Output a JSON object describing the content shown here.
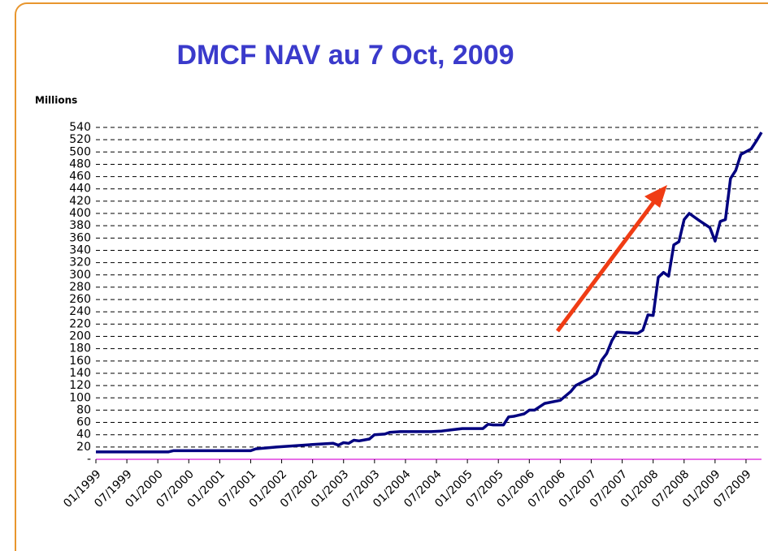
{
  "chart_data": {
    "type": "line",
    "title": "DMCF NAV au 7 Oct, 2009",
    "y_label": "Millions",
    "x": [
      "01/1999",
      "03/2000",
      "04/2000",
      "07/2001",
      "08/2001",
      "12/2001",
      "07/2002",
      "11/2002",
      "12/2002",
      "01/2003",
      "02/2003",
      "03/2003",
      "04/2003",
      "06/2003",
      "07/2003",
      "09/2003",
      "10/2003",
      "12/2003",
      "06/2004",
      "08/2004",
      "10/2004",
      "12/2004",
      "04/2005",
      "05/2005",
      "06/2005",
      "08/2005",
      "09/2005",
      "10/2005",
      "12/2005",
      "01/2006",
      "02/2006",
      "04/2006",
      "07/2006",
      "09/2006",
      "10/2006",
      "01/2007",
      "02/2007",
      "03/2007",
      "04/2007",
      "05/2007",
      "06/2007",
      "08/2007",
      "10/2007",
      "11/2007",
      "12/2007",
      "01/2008",
      "02/2008",
      "03/2008",
      "04/2008",
      "05/2008",
      "06/2008",
      "07/2008",
      "08/2008",
      "10/2008",
      "12/2008",
      "01/2009",
      "02/2009",
      "03/2009",
      "04/2009",
      "05/2009",
      "06/2009",
      "08/2009",
      "09/2009",
      "10/2009"
    ],
    "series": [
      {
        "name": "NAV",
        "color": "#000080",
        "values": [
          12,
          12,
          14,
          14,
          17,
          20,
          24,
          26,
          23,
          27,
          26,
          31,
          30,
          33,
          40,
          41,
          44,
          45,
          45,
          46,
          48,
          50,
          50,
          57,
          56,
          56,
          69,
          70,
          74,
          80,
          80,
          91,
          96,
          110,
          120,
          133,
          139,
          161,
          172,
          193,
          207,
          206,
          205,
          210,
          235,
          234,
          296,
          304,
          298,
          349,
          354,
          390,
          400,
          388,
          377,
          355,
          387,
          390,
          457,
          470,
          496,
          505,
          518,
          532
        ]
      }
    ],
    "xlim": [
      "01/1999",
      "10/2009"
    ],
    "xticks": [
      "01/1999",
      "07/1999",
      "01/2000",
      "07/2000",
      "01/2001",
      "07/2001",
      "01/2002",
      "07/2002",
      "01/2003",
      "07/2003",
      "01/2004",
      "07/2004",
      "01/2005",
      "07/2005",
      "01/2006",
      "07/2006",
      "01/2007",
      "07/2007",
      "01/2008",
      "07/2008",
      "01/2009",
      "07/2009"
    ],
    "ylim": [
      0,
      540
    ],
    "yticks": [
      {
        "value": 0,
        "label": "-"
      },
      20,
      40,
      60,
      80,
      100,
      120,
      140,
      160,
      180,
      200,
      220,
      240,
      260,
      280,
      300,
      320,
      340,
      360,
      380,
      400,
      420,
      440,
      460,
      480,
      500,
      520,
      540
    ],
    "grid": true
  }
}
